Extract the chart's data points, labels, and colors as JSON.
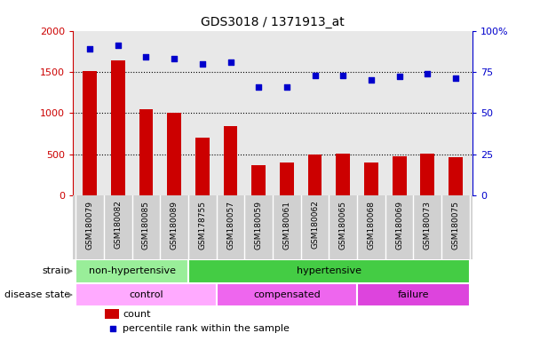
{
  "title": "GDS3018 / 1371913_at",
  "samples": [
    "GSM180079",
    "GSM180082",
    "GSM180085",
    "GSM180089",
    "GSM178755",
    "GSM180057",
    "GSM180059",
    "GSM180061",
    "GSM180062",
    "GSM180065",
    "GSM180068",
    "GSM180069",
    "GSM180073",
    "GSM180075"
  ],
  "counts": [
    1510,
    1640,
    1050,
    1005,
    700,
    835,
    360,
    395,
    500,
    505,
    400,
    470,
    510,
    465
  ],
  "percentiles": [
    89,
    91,
    84,
    83,
    80,
    81,
    66,
    66,
    73,
    73,
    70,
    72,
    74,
    71
  ],
  "bar_color": "#cc0000",
  "dot_color": "#0000cc",
  "ylim_left": [
    0,
    2000
  ],
  "ylim_right": [
    0,
    100
  ],
  "yticks_left": [
    0,
    500,
    1000,
    1500,
    2000
  ],
  "yticks_right": [
    0,
    25,
    50,
    75,
    100
  ],
  "ytick_labels_right": [
    "0",
    "25",
    "50",
    "75",
    "100%"
  ],
  "strain_groups": [
    {
      "label": "non-hypertensive",
      "start": 0,
      "end": 4,
      "color": "#99ee99"
    },
    {
      "label": "hypertensive",
      "start": 4,
      "end": 14,
      "color": "#44cc44"
    }
  ],
  "disease_groups": [
    {
      "label": "control",
      "start": 0,
      "end": 5,
      "color": "#ffaaff"
    },
    {
      "label": "compensated",
      "start": 5,
      "end": 10,
      "color": "#ee66ee"
    },
    {
      "label": "failure",
      "start": 10,
      "end": 14,
      "color": "#dd44dd"
    }
  ],
  "strain_label": "strain",
  "disease_label": "disease state",
  "legend_count_label": "count",
  "legend_pct_label": "percentile rank within the sample",
  "axis_bg_color": "#e8e8e8",
  "xtick_bg_color": "#d0d0d0",
  "grid_color": "black"
}
